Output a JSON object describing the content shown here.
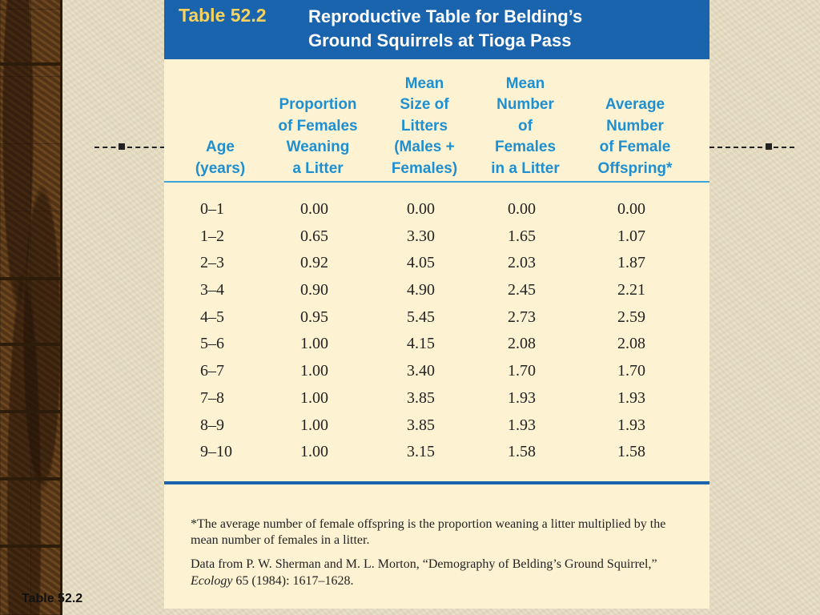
{
  "table": {
    "number": "Table 52.2",
    "title_line1": "Reproductive Table for Belding’s",
    "title_line2": "Ground Squirrels at Tioga Pass",
    "columns": [
      [
        "Age",
        "(years)"
      ],
      [
        "Proportion",
        "of Females",
        "Weaning",
        "a Litter"
      ],
      [
        "Mean",
        "Size of",
        "Litters",
        "(Males +",
        "Females)"
      ],
      [
        "Mean",
        "Number",
        "of",
        "Females",
        "in a Litter"
      ],
      [
        "Average",
        "Number",
        "of Female",
        "Offspring*"
      ]
    ],
    "rows": [
      [
        "0–1",
        "0.00",
        "0.00",
        "0.00",
        "0.00"
      ],
      [
        "1–2",
        "0.65",
        "3.30",
        "1.65",
        "1.07"
      ],
      [
        "2–3",
        "0.92",
        "4.05",
        "2.03",
        "1.87"
      ],
      [
        "3–4",
        "0.90",
        "4.90",
        "2.45",
        "2.21"
      ],
      [
        "4–5",
        "0.95",
        "5.45",
        "2.73",
        "2.59"
      ],
      [
        "5–6",
        "1.00",
        "4.15",
        "2.08",
        "2.08"
      ],
      [
        "6–7",
        "1.00",
        "3.40",
        "1.70",
        "1.70"
      ],
      [
        "7–8",
        "1.00",
        "3.85",
        "1.93",
        "1.93"
      ],
      [
        "8–9",
        "1.00",
        "3.85",
        "1.93",
        "1.93"
      ],
      [
        "9–10",
        "1.00",
        "3.15",
        "1.58",
        "1.58"
      ]
    ],
    "footnote": "*The average number of female offspring is the proportion weaning a litter multiplied by the mean number of females in a litter.",
    "source_prefix": "Data from P. W. Sherman and M. L. Morton, “Demography of Belding’s Ground Squirrel,” ",
    "source_journal": "Ecology",
    "source_suffix": " 65 (1984): 1617–1628."
  },
  "slide": {
    "caption": "Table 52.2"
  },
  "colors": {
    "header_blue": "#1a64ad",
    "title_yellow": "#f7d35e",
    "column_header_blue": "#1f8fd0",
    "card_background": "#fdf3d3"
  }
}
